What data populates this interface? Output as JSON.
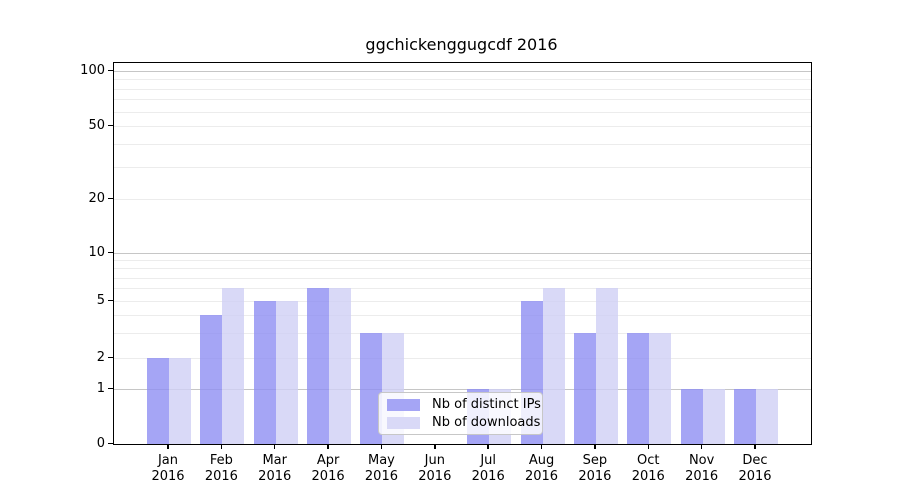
{
  "chart_data": {
    "type": "bar",
    "title": "ggchickenggugcdf 2016",
    "xlabel": "",
    "ylabel": "",
    "categories": [
      "Jan 2016",
      "Feb 2016",
      "Mar 2016",
      "Apr 2016",
      "May 2016",
      "Jun 2016",
      "Jul 2016",
      "Aug 2016",
      "Sep 2016",
      "Oct 2016",
      "Nov 2016",
      "Dec 2016"
    ],
    "x_tick_months": [
      "Jan",
      "Feb",
      "Mar",
      "Apr",
      "May",
      "Jun",
      "Jul",
      "Aug",
      "Sep",
      "Oct",
      "Nov",
      "Dec"
    ],
    "x_tick_year": "2016",
    "series": [
      {
        "name": "Nb of distinct IPs",
        "color": "#a5a5f5",
        "values": [
          2,
          4,
          5,
          6,
          3,
          0,
          1,
          5,
          3,
          3,
          1,
          1
        ]
      },
      {
        "name": "Nb of downloads",
        "color": "#d9d9f7",
        "values": [
          2,
          6,
          5,
          6,
          3,
          0,
          1,
          6,
          6,
          3,
          1,
          1
        ]
      }
    ],
    "y_axis": {
      "scale": "symlog",
      "tick_labels": [
        0,
        1,
        2,
        5,
        10,
        20,
        50,
        100
      ],
      "minor_gridlines": [
        2,
        3,
        4,
        5,
        6,
        7,
        8,
        9,
        20,
        30,
        40,
        50,
        60,
        70,
        80,
        90
      ],
      "major_gridlines": [
        1,
        10,
        100
      ],
      "ylim": [
        0,
        115
      ]
    },
    "legend": {
      "entries": [
        "Nb of distinct IPs",
        "Nb of downloads"
      ],
      "position": "lower center"
    },
    "grid": true,
    "colors": {
      "bar_dark": "#a5a5f5",
      "bar_light": "#d9d9f7",
      "grid_minor": "#ececec",
      "grid_major": "#c6c6c6",
      "axis": "#000000",
      "background": "#ffffff"
    }
  }
}
